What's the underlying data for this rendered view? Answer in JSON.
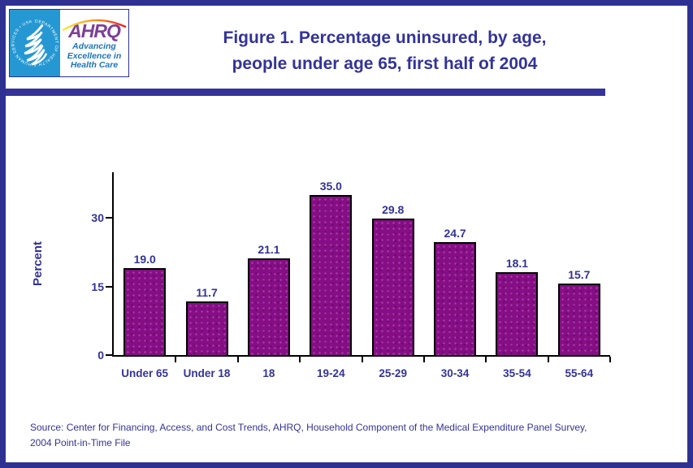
{
  "header": {
    "title_lines": [
      "Figure 1. Percentage uninsured, by age,",
      "people under age 65, first half of 2004"
    ],
    "logo": {
      "hhs_seal_text": "DEPARTMENT OF HEALTH & HUMAN SERVICES • USA",
      "ahrq_acronym": "AHRQ",
      "tagline_lines": [
        "Advancing",
        "Excellence in",
        "Health Care"
      ]
    }
  },
  "chart_data": {
    "type": "bar",
    "categories": [
      "Under 65",
      "Under 18",
      "18",
      "19-24",
      "25-29",
      "30-34",
      "35-54",
      "55-64"
    ],
    "values": [
      19.0,
      11.7,
      21.1,
      35.0,
      29.8,
      24.7,
      18.1,
      15.7
    ],
    "value_labels": [
      "19.0",
      "11.7",
      "21.1",
      "35.0",
      "29.8",
      "24.7",
      "18.1",
      "15.7"
    ],
    "title": "Figure 1. Percentage uninsured, by age, people under age 65, first half of 2004",
    "xlabel": "",
    "ylabel": "Percent",
    "yticks": [
      0,
      15,
      30
    ],
    "ylim": [
      0,
      40
    ],
    "grid": false,
    "legend": "none",
    "bar_color": "#850E85"
  },
  "source": {
    "lines": [
      "Source: Center for Financing, Access, and Cost Trends, AHRQ, Household Component of the Medical Expenditure Panel Survey,",
      "2004 Point-in-Time File"
    ]
  },
  "colors": {
    "border_navy": "#2E3192",
    "text_navy": "#333399",
    "bar_purple": "#850E85",
    "hhs_blue": "#2598D3",
    "ahrq_purple": "#7D3F98",
    "tagline_blue": "#1B75BC",
    "axis_black": "#000000"
  }
}
